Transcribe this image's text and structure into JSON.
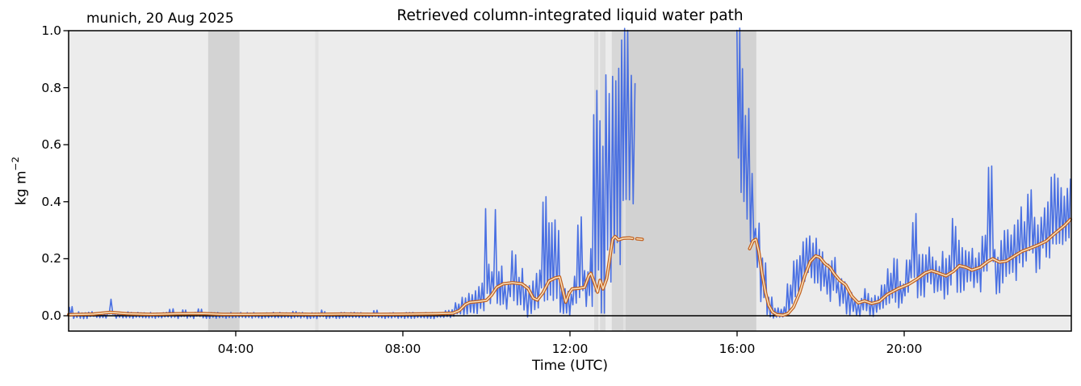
{
  "figure": {
    "corner_label": "munich, 20 Aug 2025",
    "title": "Retrieved column-integrated liquid water path",
    "xlabel": "Time (UTC)",
    "ylabel_base": "kg m",
    "ylabel_sup": "−2"
  },
  "chart_data": {
    "type": "line",
    "title": "Retrieved column-integrated liquid water path",
    "station_date": "munich, 20 Aug 2025",
    "xlabel": "Time (UTC)",
    "ylabel": "kg m^-2",
    "x_unit": "hours UTC",
    "xlim": [
      0,
      24
    ],
    "ylim": [
      -0.054,
      1.0
    ],
    "grid": false,
    "legend": "none",
    "xticks": [
      {
        "t": 4,
        "label": "04:00"
      },
      {
        "t": 8,
        "label": "08:00"
      },
      {
        "t": 12,
        "label": "12:00"
      },
      {
        "t": 16,
        "label": "16:00"
      },
      {
        "t": 20,
        "label": "20:00"
      }
    ],
    "yticks": [
      {
        "v": 0.0,
        "label": "0.0"
      },
      {
        "v": 0.2,
        "label": "0.2"
      },
      {
        "v": 0.4,
        "label": "0.4"
      },
      {
        "v": 0.6,
        "label": "0.6"
      },
      {
        "v": 0.8,
        "label": "0.8"
      },
      {
        "v": 1.0,
        "label": "1.0"
      }
    ],
    "colors": {
      "plot_bg": "#ececec",
      "raw_series": "#4169e1",
      "smoothed_outline": "#c2601e",
      "smoothed_core": "#f9e4c1",
      "zero_line": "#000000",
      "frame": "#000000"
    },
    "zero_line_y": 0.0,
    "shaded_spans": [
      {
        "t0": 3.34,
        "t1": 4.09,
        "color": "#d3d3d3"
      },
      {
        "t0": 5.9,
        "t1": 5.98,
        "color": "#e2e2e2"
      },
      {
        "t0": 12.58,
        "t1": 12.68,
        "color": "#dcdcdc"
      },
      {
        "t0": 12.72,
        "t1": 12.85,
        "color": "#dcdcdc"
      },
      {
        "t0": 13.0,
        "t1": 13.28,
        "color": "#d7d7d7"
      },
      {
        "t0": 13.28,
        "t1": 13.33,
        "color": "#e1e1e1"
      },
      {
        "t0": 13.33,
        "t1": 16.46,
        "color": "#d2d2d2"
      }
    ],
    "series": [
      {
        "name": "raw_retrievals",
        "style": "noisy_envelope",
        "color": "#4169e1",
        "envelope_t0_t1_lo_hi": [
          [
            0.0,
            0.1,
            -0.008,
            0.032
          ],
          [
            0.1,
            0.5,
            -0.01,
            0.014
          ],
          [
            0.5,
            0.62,
            -0.008,
            0.022
          ],
          [
            0.62,
            0.95,
            -0.01,
            0.013
          ],
          [
            0.95,
            1.08,
            -0.004,
            0.066
          ],
          [
            1.08,
            1.6,
            -0.01,
            0.014
          ],
          [
            1.6,
            2.4,
            -0.009,
            0.012
          ],
          [
            2.4,
            2.52,
            -0.007,
            0.028
          ],
          [
            2.52,
            2.68,
            -0.01,
            0.013
          ],
          [
            2.68,
            2.82,
            -0.007,
            0.03
          ],
          [
            2.82,
            3.05,
            -0.01,
            0.016
          ],
          [
            3.05,
            3.2,
            -0.007,
            0.026
          ],
          [
            3.2,
            4.1,
            -0.01,
            0.012
          ],
          [
            4.1,
            5.35,
            -0.01,
            0.012
          ],
          [
            5.35,
            5.5,
            -0.008,
            0.02
          ],
          [
            5.5,
            6.0,
            -0.01,
            0.012
          ],
          [
            6.0,
            6.15,
            -0.008,
            0.022
          ],
          [
            6.15,
            7.25,
            -0.01,
            0.012
          ],
          [
            7.25,
            7.4,
            -0.008,
            0.02
          ],
          [
            7.4,
            9.0,
            -0.01,
            0.012
          ],
          [
            9.0,
            9.2,
            -0.008,
            0.022
          ],
          [
            9.2,
            9.4,
            -0.005,
            0.055
          ],
          [
            9.4,
            9.6,
            0.0,
            0.085
          ],
          [
            9.6,
            9.8,
            -0.005,
            0.095
          ],
          [
            9.8,
            9.92,
            0.0,
            0.13
          ],
          [
            9.92,
            10.04,
            0.01,
            0.39
          ],
          [
            10.04,
            10.15,
            0.0,
            0.2
          ],
          [
            10.15,
            10.28,
            0.01,
            0.39
          ],
          [
            10.28,
            10.42,
            0.02,
            0.18
          ],
          [
            10.42,
            10.55,
            0.0,
            0.13
          ],
          [
            10.55,
            10.72,
            0.02,
            0.27
          ],
          [
            10.72,
            10.88,
            0.01,
            0.18
          ],
          [
            10.88,
            11.05,
            -0.005,
            0.12
          ],
          [
            11.05,
            11.18,
            0.0,
            0.15
          ],
          [
            11.18,
            11.3,
            0.01,
            0.2
          ],
          [
            11.3,
            11.48,
            0.03,
            0.43
          ],
          [
            11.48,
            11.62,
            0.05,
            0.35
          ],
          [
            11.62,
            11.75,
            0.05,
            0.35
          ],
          [
            11.75,
            11.9,
            -0.005,
            0.12
          ],
          [
            11.9,
            12.05,
            0.0,
            0.1
          ],
          [
            12.05,
            12.17,
            0.02,
            0.15
          ],
          [
            12.17,
            12.33,
            0.03,
            0.37
          ],
          [
            12.33,
            12.45,
            0.0,
            0.16
          ],
          [
            12.45,
            12.55,
            0.02,
            0.26
          ],
          [
            12.55,
            12.7,
            0.05,
            0.8
          ],
          [
            12.7,
            12.84,
            0.0,
            0.78
          ],
          [
            12.84,
            12.96,
            0.05,
            0.95
          ],
          [
            12.96,
            13.08,
            0.1,
            0.96
          ],
          [
            13.08,
            13.22,
            0.15,
            1.01
          ],
          [
            13.22,
            13.36,
            0.25,
            1.01
          ],
          [
            13.36,
            13.49,
            0.3,
            1.01
          ],
          [
            13.49,
            13.58,
            0.33,
            0.9
          ],
          [
            15.98,
            16.08,
            0.55,
            1.01
          ],
          [
            16.08,
            16.18,
            0.4,
            1.01
          ],
          [
            16.18,
            16.3,
            0.3,
            0.76
          ],
          [
            16.3,
            16.42,
            0.22,
            0.5
          ],
          [
            16.42,
            16.55,
            0.14,
            0.35
          ],
          [
            16.55,
            16.7,
            0.04,
            0.22
          ],
          [
            16.7,
            16.85,
            -0.005,
            0.08
          ],
          [
            16.85,
            17.15,
            -0.01,
            0.035
          ],
          [
            17.15,
            17.3,
            0.0,
            0.12
          ],
          [
            17.3,
            17.45,
            0.03,
            0.2
          ],
          [
            17.45,
            17.6,
            0.08,
            0.26
          ],
          [
            17.6,
            17.8,
            0.12,
            0.33
          ],
          [
            17.8,
            17.95,
            0.1,
            0.28
          ],
          [
            17.95,
            18.1,
            0.08,
            0.25
          ],
          [
            18.1,
            18.25,
            0.05,
            0.185
          ],
          [
            18.25,
            18.4,
            0.08,
            0.205
          ],
          [
            18.4,
            18.6,
            0.02,
            0.15
          ],
          [
            18.6,
            18.8,
            0.0,
            0.105
          ],
          [
            18.8,
            19.0,
            -0.005,
            0.062
          ],
          [
            19.0,
            19.2,
            0.0,
            0.095
          ],
          [
            19.2,
            19.4,
            -0.005,
            0.075
          ],
          [
            19.4,
            19.55,
            0.01,
            0.125
          ],
          [
            19.55,
            19.7,
            0.02,
            0.165
          ],
          [
            19.7,
            19.85,
            0.04,
            0.215
          ],
          [
            19.85,
            20.0,
            0.02,
            0.145
          ],
          [
            20.0,
            20.15,
            0.05,
            0.2
          ],
          [
            20.15,
            20.3,
            0.08,
            0.37
          ],
          [
            20.3,
            20.5,
            0.06,
            0.225
          ],
          [
            20.5,
            20.7,
            0.09,
            0.245
          ],
          [
            20.7,
            20.9,
            0.07,
            0.205
          ],
          [
            20.9,
            21.1,
            0.05,
            0.255
          ],
          [
            21.1,
            21.25,
            0.1,
            0.37
          ],
          [
            21.25,
            21.45,
            0.08,
            0.3
          ],
          [
            21.45,
            21.65,
            0.1,
            0.265
          ],
          [
            21.65,
            21.85,
            0.08,
            0.245
          ],
          [
            21.85,
            22.0,
            0.12,
            0.3
          ],
          [
            22.0,
            22.15,
            0.15,
            0.53
          ],
          [
            22.15,
            22.3,
            0.07,
            0.255
          ],
          [
            22.3,
            22.5,
            0.1,
            0.305
          ],
          [
            22.5,
            22.7,
            0.12,
            0.335
          ],
          [
            22.7,
            22.9,
            0.15,
            0.385
          ],
          [
            22.9,
            23.1,
            0.17,
            0.45
          ],
          [
            23.1,
            23.3,
            0.15,
            0.355
          ],
          [
            23.3,
            23.5,
            0.2,
            0.425
          ],
          [
            23.5,
            23.7,
            0.25,
            0.555
          ],
          [
            23.7,
            23.85,
            0.22,
            0.455
          ],
          [
            23.85,
            24.0,
            0.25,
            0.505
          ]
        ]
      },
      {
        "name": "smoothed",
        "style": "outlined_line",
        "color": "#c2601e",
        "segments": [
          [
            [
              0.0,
              0.004
            ],
            [
              0.6,
              0.006
            ],
            [
              1.0,
              0.012
            ],
            [
              1.4,
              0.007
            ],
            [
              2.0,
              0.005
            ],
            [
              2.6,
              0.007
            ],
            [
              3.2,
              0.008
            ],
            [
              3.7,
              0.005
            ],
            [
              4.3,
              0.005
            ],
            [
              5.0,
              0.006
            ],
            [
              5.8,
              0.005
            ],
            [
              6.6,
              0.006
            ],
            [
              7.4,
              0.005
            ],
            [
              8.2,
              0.006
            ],
            [
              8.8,
              0.007
            ],
            [
              9.2,
              0.009
            ],
            [
              9.35,
              0.018
            ],
            [
              9.5,
              0.04
            ],
            [
              9.6,
              0.047
            ],
            [
              9.8,
              0.05
            ],
            [
              10.0,
              0.054
            ],
            [
              10.12,
              0.072
            ],
            [
              10.25,
              0.1
            ],
            [
              10.4,
              0.112
            ],
            [
              10.62,
              0.116
            ],
            [
              10.85,
              0.112
            ],
            [
              11.0,
              0.095
            ],
            [
              11.12,
              0.062
            ],
            [
              11.22,
              0.055
            ],
            [
              11.35,
              0.08
            ],
            [
              11.5,
              0.122
            ],
            [
              11.65,
              0.133
            ],
            [
              11.75,
              0.136
            ],
            [
              11.82,
              0.095
            ],
            [
              11.9,
              0.048
            ],
            [
              11.98,
              0.08
            ],
            [
              12.05,
              0.094
            ],
            [
              12.2,
              0.096
            ],
            [
              12.35,
              0.1
            ],
            [
              12.45,
              0.14
            ],
            [
              12.5,
              0.149
            ],
            [
              12.58,
              0.118
            ],
            [
              12.66,
              0.083
            ],
            [
              12.72,
              0.124
            ],
            [
              12.79,
              0.094
            ],
            [
              12.88,
              0.13
            ],
            [
              12.96,
              0.21
            ],
            [
              13.02,
              0.268
            ],
            [
              13.08,
              0.278
            ],
            [
              13.16,
              0.266
            ],
            [
              13.28,
              0.272
            ],
            [
              13.42,
              0.273
            ],
            [
              13.5,
              0.271
            ]
          ],
          [
            [
              13.6,
              0.27
            ],
            [
              13.73,
              0.268
            ]
          ],
          [
            [
              16.3,
              0.235
            ],
            [
              16.38,
              0.262
            ],
            [
              16.45,
              0.268
            ],
            [
              16.52,
              0.225
            ],
            [
              16.6,
              0.145
            ],
            [
              16.68,
              0.082
            ],
            [
              16.76,
              0.036
            ],
            [
              16.85,
              0.013
            ],
            [
              16.95,
              0.004
            ],
            [
              17.1,
              0.002
            ],
            [
              17.22,
              0.008
            ],
            [
              17.35,
              0.03
            ],
            [
              17.5,
              0.082
            ],
            [
              17.62,
              0.14
            ],
            [
              17.75,
              0.19
            ],
            [
              17.88,
              0.21
            ],
            [
              17.98,
              0.205
            ],
            [
              18.1,
              0.183
            ],
            [
              18.22,
              0.17
            ],
            [
              18.32,
              0.148
            ],
            [
              18.45,
              0.125
            ],
            [
              18.6,
              0.108
            ],
            [
              18.75,
              0.068
            ],
            [
              18.9,
              0.045
            ],
            [
              19.05,
              0.052
            ],
            [
              19.22,
              0.043
            ],
            [
              19.4,
              0.05
            ],
            [
              19.6,
              0.075
            ],
            [
              19.85,
              0.095
            ],
            [
              20.1,
              0.11
            ],
            [
              20.3,
              0.128
            ],
            [
              20.5,
              0.15
            ],
            [
              20.65,
              0.158
            ],
            [
              20.82,
              0.15
            ],
            [
              21.0,
              0.14
            ],
            [
              21.18,
              0.156
            ],
            [
              21.32,
              0.176
            ],
            [
              21.48,
              0.17
            ],
            [
              21.62,
              0.16
            ],
            [
              21.82,
              0.17
            ],
            [
              22.0,
              0.19
            ],
            [
              22.12,
              0.2
            ],
            [
              22.28,
              0.188
            ],
            [
              22.45,
              0.192
            ],
            [
              22.62,
              0.208
            ],
            [
              22.82,
              0.226
            ],
            [
              23.0,
              0.236
            ],
            [
              23.2,
              0.248
            ],
            [
              23.4,
              0.262
            ],
            [
              23.55,
              0.282
            ],
            [
              23.7,
              0.3
            ],
            [
              23.85,
              0.318
            ],
            [
              23.98,
              0.338
            ]
          ]
        ]
      }
    ]
  }
}
